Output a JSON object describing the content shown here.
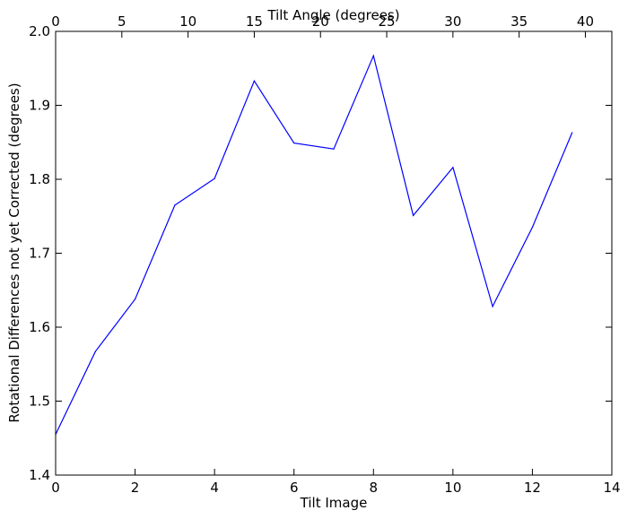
{
  "chart_data": {
    "type": "line",
    "title": "",
    "xlabel": "Tilt Image",
    "ylabel": "Rotational Differences not yet Corrected (degrees)",
    "top_xlabel": "Tilt Angle (degrees)",
    "xlim": [
      0,
      14
    ],
    "ylim": [
      1.4,
      2.0
    ],
    "top_xlim": [
      0,
      42
    ],
    "x_ticks": [
      0,
      2,
      4,
      6,
      8,
      10,
      12,
      14
    ],
    "x_tick_labels": [
      "0",
      "2",
      "4",
      "6",
      "8",
      "10",
      "12",
      "14"
    ],
    "y_ticks": [
      1.4,
      1.5,
      1.6,
      1.7,
      1.8,
      1.9,
      2.0
    ],
    "y_tick_labels": [
      "1.4",
      "1.5",
      "1.6",
      "1.7",
      "1.8",
      "1.9",
      "2.0"
    ],
    "top_x_ticks": [
      0,
      5,
      10,
      15,
      20,
      25,
      30,
      35,
      40
    ],
    "top_x_tick_labels": [
      "0",
      "5",
      "10",
      "15",
      "20",
      "25",
      "30",
      "35",
      "40"
    ],
    "grid": false,
    "legend": false,
    "series": [
      {
        "color": "#0000ff",
        "x": [
          0,
          1,
          2,
          3,
          4,
          5,
          6,
          7,
          8,
          9,
          10,
          11,
          12,
          13
        ],
        "y": [
          1.455,
          1.567,
          1.638,
          1.765,
          1.801,
          1.933,
          1.849,
          1.841,
          1.967,
          1.751,
          1.816,
          1.628,
          1.735,
          1.863
        ]
      }
    ]
  }
}
